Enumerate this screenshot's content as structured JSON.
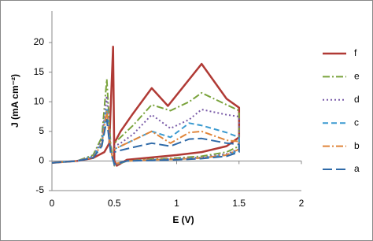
{
  "chart_data": {
    "type": "line",
    "xlabel": "E (V)",
    "ylabel": "J (mA cm⁻²)",
    "xlim": [
      0,
      2
    ],
    "xticks": [
      0,
      0.5,
      1,
      1.5,
      2
    ],
    "ylim": [
      -5,
      20
    ],
    "yticks": [
      -5,
      0,
      5,
      10,
      15,
      20
    ],
    "series": [
      {
        "name": "f",
        "color": "#b03a35",
        "dash": "solid",
        "x": [
          0,
          0.2,
          0.33,
          0.42,
          0.46,
          0.49,
          0.5,
          0.52,
          0.6,
          0.8,
          1.0,
          1.2,
          1.4,
          1.5,
          1.5,
          1.4,
          1.2,
          0.93,
          0.8,
          0.65,
          0.55,
          0.5
        ],
        "values": [
          -0.3,
          0,
          0.5,
          1.5,
          3,
          19.3,
          0,
          -0.8,
          0.2,
          0.6,
          1,
          1.5,
          2.5,
          4,
          9,
          10.5,
          16.4,
          9.3,
          12.3,
          8,
          5,
          3
        ]
      },
      {
        "name": "e",
        "color": "#7aa33c",
        "dash": "dashdot",
        "x": [
          0,
          0.2,
          0.33,
          0.4,
          0.44,
          0.47,
          0.5,
          0.6,
          0.8,
          1.0,
          1.2,
          1.4,
          1.5,
          1.5,
          1.4,
          1.2,
          1.1,
          0.95,
          0.8,
          0.65,
          0.55,
          0.5
        ],
        "values": [
          -0.3,
          0,
          1,
          4,
          13.8,
          3,
          -0.8,
          0,
          0.3,
          0.5,
          0.8,
          1.5,
          2.5,
          8.5,
          9.5,
          11.5,
          10,
          8.5,
          9.5,
          6,
          4,
          3
        ]
      },
      {
        "name": "d",
        "color": "#7a5ca8",
        "dash": "dot",
        "x": [
          0,
          0.2,
          0.33,
          0.4,
          0.44,
          0.47,
          0.5,
          0.6,
          0.8,
          1.0,
          1.2,
          1.4,
          1.5,
          1.5,
          1.4,
          1.2,
          1.1,
          0.95,
          0.8,
          0.65,
          0.55,
          0.5
        ],
        "values": [
          -0.3,
          0,
          0.8,
          3.5,
          11,
          2.5,
          -0.7,
          0,
          0.2,
          0.4,
          0.6,
          1.2,
          2,
          7.5,
          7.8,
          8.7,
          7,
          5.5,
          7.8,
          4.5,
          3,
          2.5
        ]
      },
      {
        "name": "c",
        "color": "#3a9ad0",
        "dash": "dash",
        "x": [
          0,
          0.2,
          0.33,
          0.4,
          0.44,
          0.47,
          0.5,
          0.6,
          0.8,
          1.0,
          1.2,
          1.4,
          1.5,
          1.5,
          1.4,
          1.2,
          1.1,
          0.95,
          0.8,
          0.65,
          0.55,
          0.5
        ],
        "values": [
          -0.3,
          0,
          0.7,
          3,
          9,
          2,
          -0.6,
          0,
          0.2,
          0.3,
          0.5,
          1,
          1.8,
          4,
          4.8,
          6,
          6.4,
          4,
          5,
          3.5,
          2.5,
          2
        ]
      },
      {
        "name": "b",
        "color": "#e0853a",
        "dash": "dashdot",
        "x": [
          0,
          0.2,
          0.33,
          0.4,
          0.44,
          0.47,
          0.5,
          0.6,
          0.8,
          1.0,
          1.2,
          1.4,
          1.5,
          1.5,
          1.4,
          1.2,
          1.1,
          0.95,
          0.8,
          0.65,
          0.55,
          0.5
        ],
        "values": [
          -0.3,
          0,
          0.6,
          2.8,
          8.5,
          2,
          -0.5,
          0,
          0.2,
          0.3,
          0.5,
          1,
          2,
          3.3,
          3.5,
          5,
          4.8,
          3,
          5,
          3.5,
          2.5,
          2
        ]
      },
      {
        "name": "a",
        "color": "#2f6aa8",
        "dash": "longdash",
        "x": [
          0,
          0.2,
          0.33,
          0.4,
          0.44,
          0.47,
          0.5,
          0.6,
          0.8,
          1.0,
          1.2,
          1.4,
          1.5,
          1.5,
          1.4,
          1.2,
          1.1,
          0.95,
          0.8,
          0.65,
          0.55,
          0.5
        ],
        "values": [
          -0.3,
          0,
          0.5,
          2.5,
          7,
          1.5,
          -0.5,
          0,
          0.1,
          0.2,
          0.4,
          0.8,
          1.5,
          2.8,
          3,
          3.8,
          3.7,
          2.5,
          3,
          2.3,
          1.8,
          1.5
        ]
      }
    ]
  }
}
